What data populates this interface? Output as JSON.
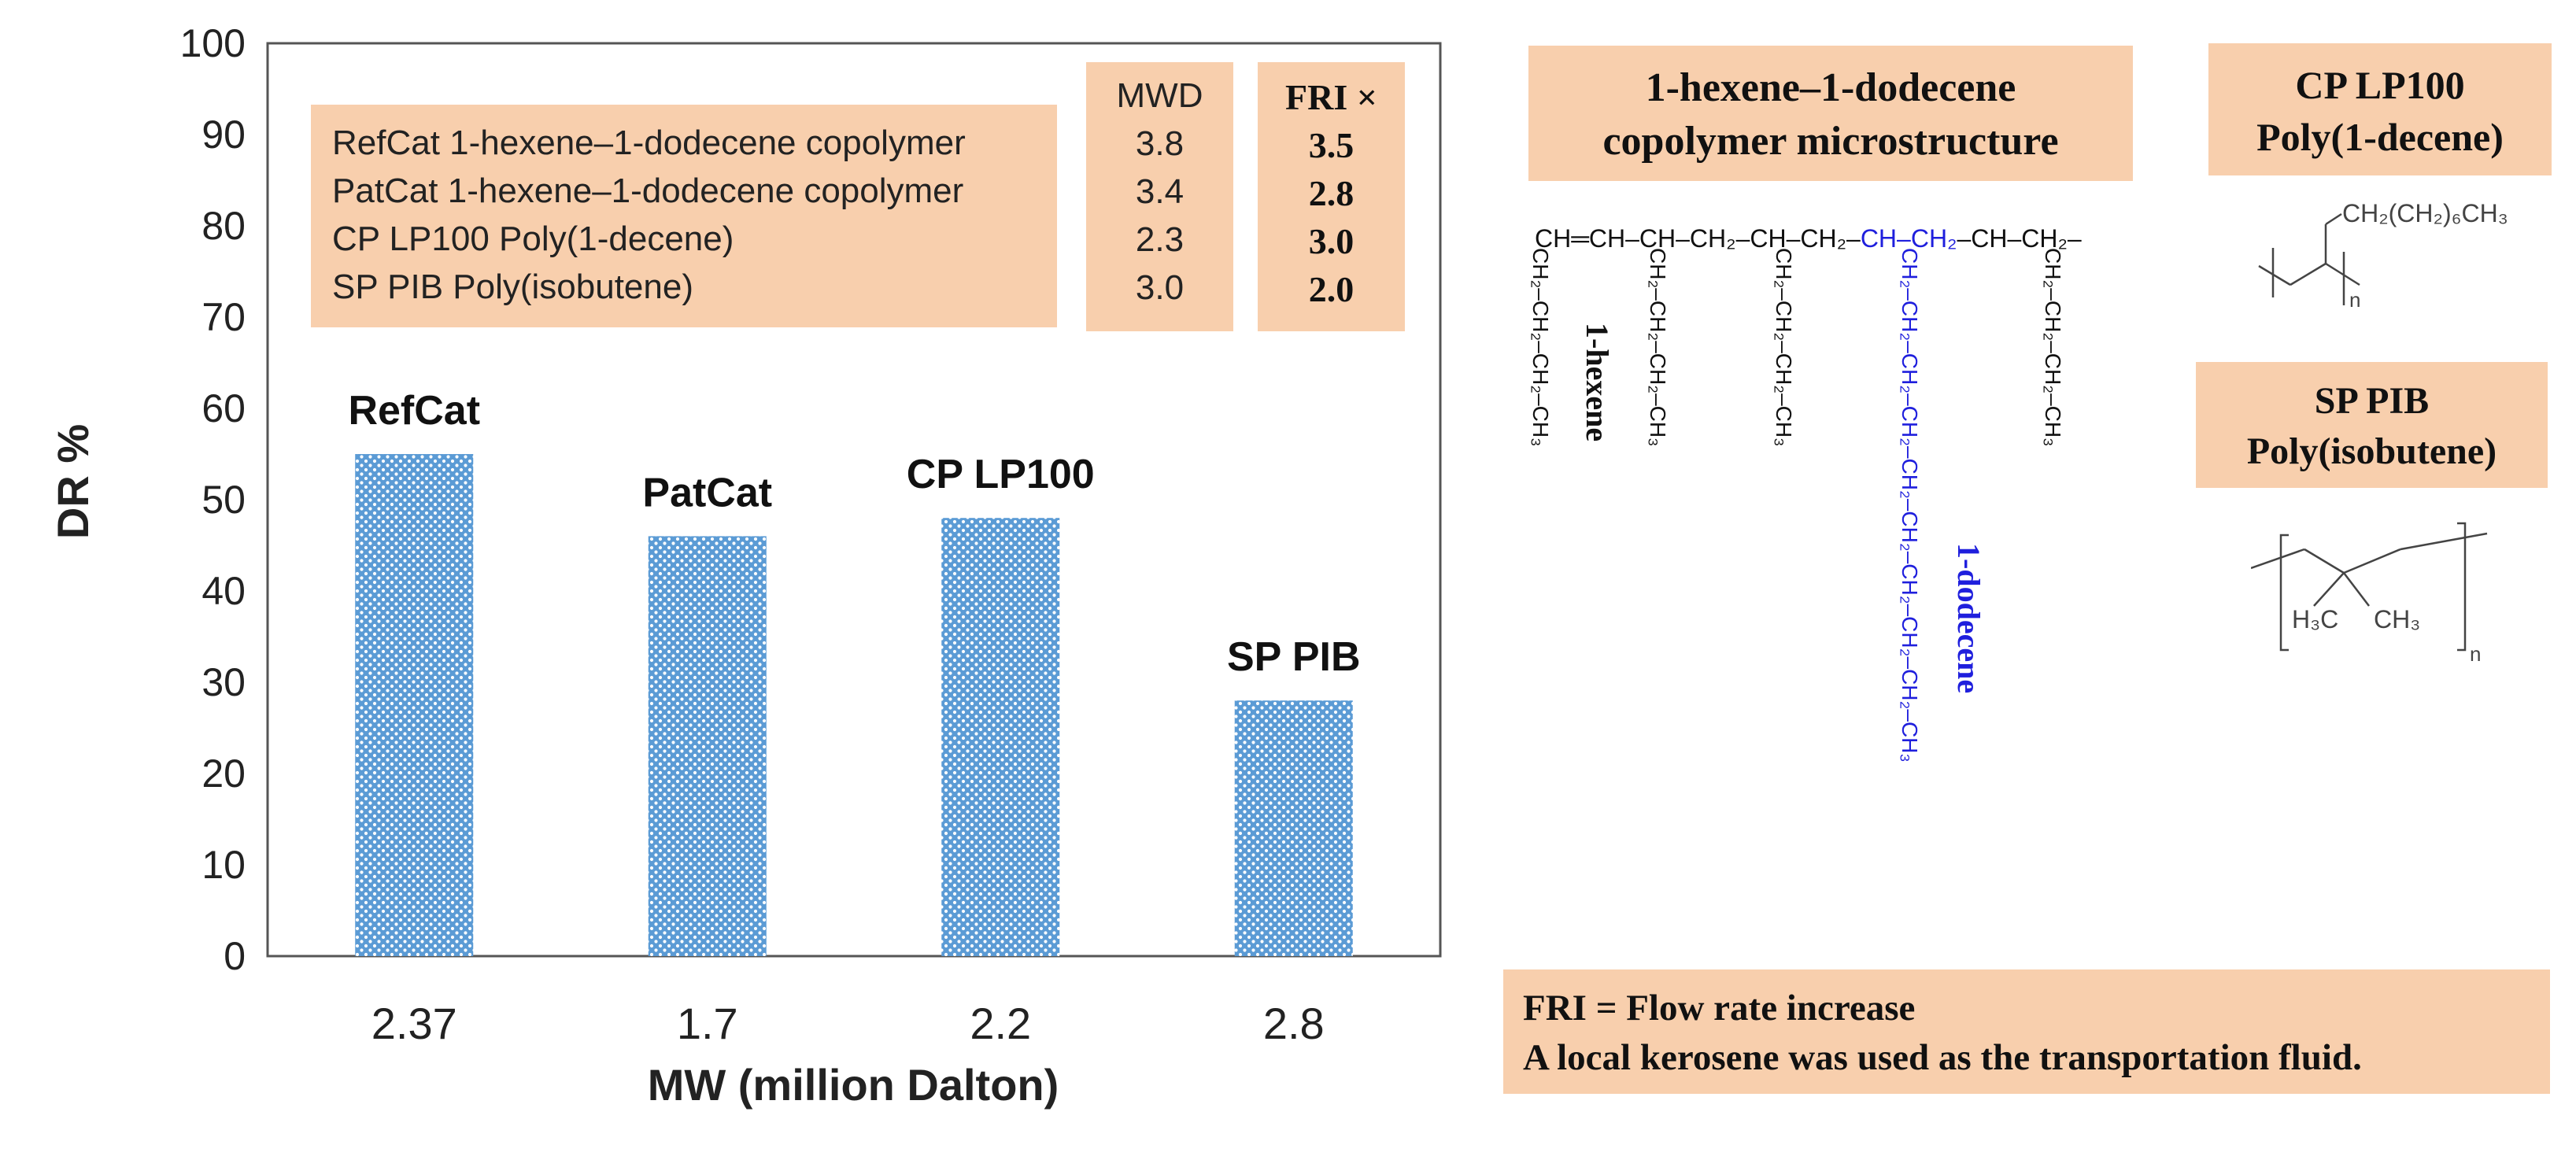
{
  "chart_data": {
    "type": "bar",
    "categories": [
      "2.37",
      "1.7",
      "2.2",
      "2.8"
    ],
    "values": [
      55,
      46,
      48,
      28
    ],
    "bar_labels": [
      "RefCat",
      "PatCat",
      "CP LP100",
      "SP PIB"
    ],
    "title": "",
    "xlabel": "MW (million Dalton)",
    "ylabel": "DR %",
    "ylim": [
      0,
      100
    ],
    "yticks": [
      0,
      10,
      20,
      30,
      40,
      50,
      60,
      70,
      80,
      90,
      100
    ],
    "bar_color": "#5b9bd5",
    "grid": false
  },
  "legend_table": {
    "lines": [
      "RefCat  1-hexene–1-dodecene copolymer",
      "PatCat  1-hexene–1-dodecene copolymer",
      "CP LP100  Poly(1-decene)",
      "SP PIB Poly(isobutene)"
    ],
    "mwd_header": "MWD",
    "mwd_values": [
      "3.8",
      "3.4",
      "2.3",
      "3.0"
    ],
    "fri_header": "FRI ×",
    "fri_values": [
      "3.5",
      "2.8",
      "3.0",
      "2.0"
    ]
  },
  "copolymer_box": {
    "line1": "1-hexene–1-dodecene",
    "line2": "copolymer microstructure"
  },
  "cp_box": {
    "line1": "CP LP100",
    "line2": "Poly(1-decene)"
  },
  "sp_box": {
    "line1": "SP PIB",
    "line2": "Poly(isobutene)"
  },
  "structures": {
    "backbone_black": "CH═CH–CH–CH₂–CH–CH₂–",
    "backbone_blue": "CH–CH₂",
    "backbone_tail": "–CH–CH₂–",
    "hexene_chain": "CH₂–CH₂–CH₂–CH₃",
    "dodecene_chain": "CH₂–CH₂–CH₂–CH₂–CH₂–CH₂–CH₂–CH₂–CH₂–CH₃",
    "hexene_label": "1-hexene",
    "dodecene_label": "1-dodecene",
    "decene_side": "CH₂(CH₂)₆CH₃",
    "pib_left": "H₃C",
    "pib_right": "CH₃",
    "subscript_n": "n"
  },
  "note": {
    "line1": "FRI = Flow rate increase",
    "line2": "A local kerosene was used as the transportation fluid."
  },
  "colors": {
    "peach": "#f8cfad",
    "blue_chain": "#1f1fdd",
    "bar": "#5b9bd5"
  }
}
